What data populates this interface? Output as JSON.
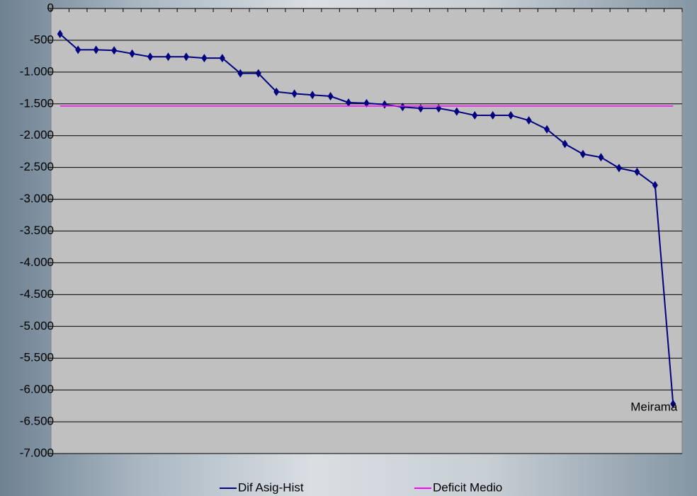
{
  "chart_data": {
    "type": "line",
    "categories": [
      null,
      null,
      null,
      null,
      null,
      null,
      null,
      null,
      null,
      null,
      null,
      null,
      null,
      null,
      null,
      null,
      null,
      null,
      null,
      null,
      null,
      null,
      null,
      null,
      null,
      null,
      null,
      null,
      null,
      null,
      null,
      null,
      null,
      null,
      null
    ],
    "series": [
      {
        "name": "Dif Asig-Hist",
        "color": "#000080",
        "marker": "diamond",
        "values": [
          -400,
          -650,
          -650,
          -660,
          -710,
          -760,
          -760,
          -760,
          -780,
          -780,
          -1020,
          -1020,
          -1310,
          -1340,
          -1360,
          -1380,
          -1480,
          -1490,
          -1510,
          -1550,
          -1570,
          -1570,
          -1620,
          -1680,
          -1680,
          -1680,
          -1760,
          -1900,
          -2130,
          -2290,
          -2340,
          -2510,
          -2570,
          -2780,
          -6220
        ]
      },
      {
        "name": "Deficit Medio",
        "color": "#ff00ff",
        "marker": "none",
        "values": [
          -1535,
          -1535,
          -1535,
          -1535,
          -1535,
          -1535,
          -1535,
          -1535,
          -1535,
          -1535,
          -1535,
          -1535,
          -1535,
          -1535,
          -1535,
          -1535,
          -1535,
          -1535,
          -1535,
          -1535,
          -1535,
          -1535,
          -1535,
          -1535,
          -1535,
          -1535,
          -1535,
          -1535,
          -1535,
          -1535,
          -1535,
          -1535,
          -1535,
          -1535,
          -1535
        ]
      }
    ],
    "annotations": [
      {
        "text": "Meirama",
        "series": 0,
        "index": 34
      }
    ],
    "ylim": [
      -7000,
      0
    ],
    "yticks": [
      {
        "value": -7000,
        "label": "-7.000"
      },
      {
        "value": -6500,
        "label": "-6.500"
      },
      {
        "value": -6000,
        "label": "-6.000"
      },
      {
        "value": -5500,
        "label": "-5.500"
      },
      {
        "value": -5000,
        "label": "-5.000"
      },
      {
        "value": -4500,
        "label": "-4.500"
      },
      {
        "value": -4000,
        "label": "-4.000"
      },
      {
        "value": -3500,
        "label": "-3.500"
      },
      {
        "value": -3000,
        "label": "-3.000"
      },
      {
        "value": -2500,
        "label": "-2.500"
      },
      {
        "value": -2000,
        "label": "-2.000"
      },
      {
        "value": -1500,
        "label": "-1.500"
      },
      {
        "value": -1000,
        "label": "-1.000"
      },
      -500,
      0
    ],
    "grid": true,
    "legend": "bottom"
  }
}
